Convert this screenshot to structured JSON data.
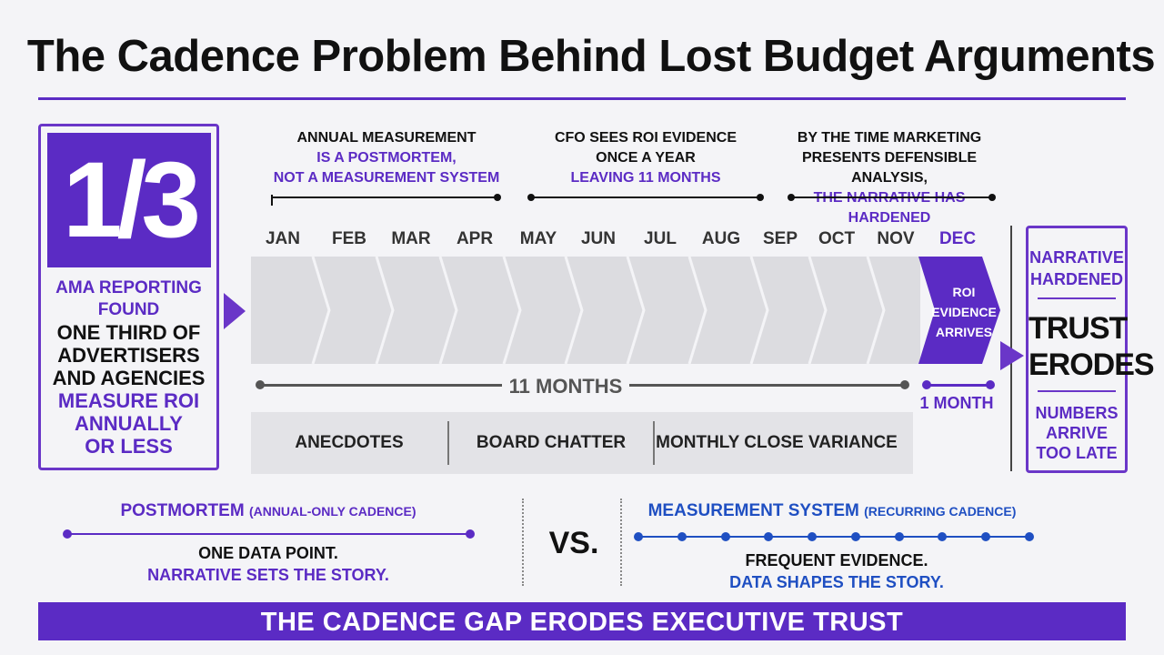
{
  "title": "The Cadence Problem Behind Lost Budget Arguments",
  "stat": {
    "value": "1/3",
    "lines_purple_top": [
      "AMA REPORTING",
      "FOUND"
    ],
    "lines_black": [
      "ONE THIRD OF",
      "ADVERTISERS",
      "AND AGENCIES"
    ],
    "lines_purple_bottom": [
      "MEASURE ROI",
      "ANNUALLY",
      "OR LESS"
    ]
  },
  "callouts": [
    {
      "line1": "ANNUAL MEASUREMENT",
      "line2": "IS A POSTMORTEM,",
      "line3": "NOT A MEASUREMENT SYSTEM"
    },
    {
      "line1": "CFO SEES ROI EVIDENCE",
      "line2": "ONCE A YEAR",
      "line3": "LEAVING 11 MONTHS"
    },
    {
      "line1": "BY THE TIME MARKETING",
      "line2": "PRESENTS DEFENSIBLE ANALYSIS,",
      "line3": "THE NARRATIVE HAS HARDENED"
    }
  ],
  "months": [
    "JAN",
    "FEB",
    "MAR",
    "APR",
    "MAY",
    "JUN",
    "JUL",
    "AUG",
    "SEP",
    "OCT",
    "NOV",
    "DEC"
  ],
  "dec_label": [
    "ROI",
    "EVIDENCE",
    "ARRIVES"
  ],
  "eleven_months_label": "11 MONTHS",
  "one_month_label": "1 MONTH",
  "signals": [
    "ANECDOTES",
    "BOARD CHATTER",
    "MONTHLY CLOSE VARIANCE"
  ],
  "right_card": {
    "top": [
      "NARRATIVE",
      "HARDENED"
    ],
    "middle": [
      "TRUST",
      "ERODES"
    ],
    "bottom": [
      "NUMBERS",
      "ARRIVE",
      "TOO LATE"
    ]
  },
  "postmortem": {
    "heading": "POSTMORTEM",
    "heading_small": "(ANNUAL-ONLY CADENCE)",
    "line1": "ONE DATA POINT.",
    "line2": "NARRATIVE SETS THE STORY."
  },
  "vs": "VS.",
  "measurement": {
    "heading": "MEASUREMENT SYSTEM",
    "heading_small": "(RECURRING CADENCE)",
    "line1": "FREQUENT EVIDENCE.",
    "line2": "DATA SHAPES THE STORY.",
    "point_count": 10
  },
  "banner": "THE CADENCE GAP ERODES EXECUTIVE TRUST",
  "colors": {
    "accent": "#5b2bc4",
    "blue": "#1f4fc2",
    "band": "#dcdce0"
  }
}
